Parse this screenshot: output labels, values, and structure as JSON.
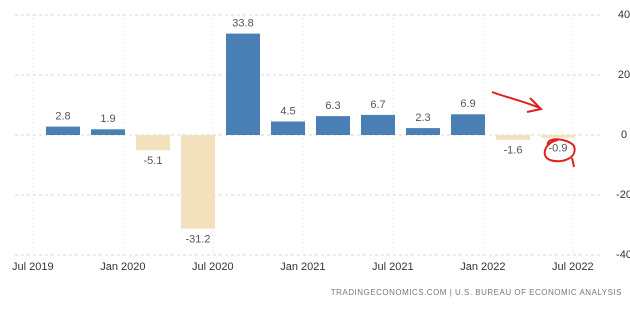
{
  "chart_data": {
    "type": "bar",
    "categories": [
      null,
      null,
      null,
      null,
      null,
      null,
      null,
      null,
      null,
      null,
      null,
      null
    ],
    "values": [
      2.8,
      1.9,
      -5.1,
      -31.2,
      33.8,
      4.5,
      6.3,
      6.7,
      2.3,
      6.9,
      -1.6,
      -0.9
    ],
    "positive_color": "#4a7fb5",
    "negative_color": "#f3e1bd",
    "ylim": [
      -40,
      40
    ],
    "yticks": [
      -40,
      -20,
      0,
      20,
      40
    ],
    "grid": true,
    "xticks": [
      {
        "value": -0.67,
        "label": "Jul 2019"
      },
      {
        "value": 1.33,
        "label": "Jan 2020"
      },
      {
        "value": 3.33,
        "label": "Jul 2020"
      },
      {
        "value": 5.33,
        "label": "Jan 2021"
      },
      {
        "value": 7.33,
        "label": "Jul 2021"
      },
      {
        "value": 9.33,
        "label": "Jan 2022"
      },
      {
        "value": 11.33,
        "label": "Jul 2022"
      }
    ],
    "source": "TRADINGECONOMICS.COM | U.S. BUREAU OF ECONOMIC ANALYSIS"
  }
}
